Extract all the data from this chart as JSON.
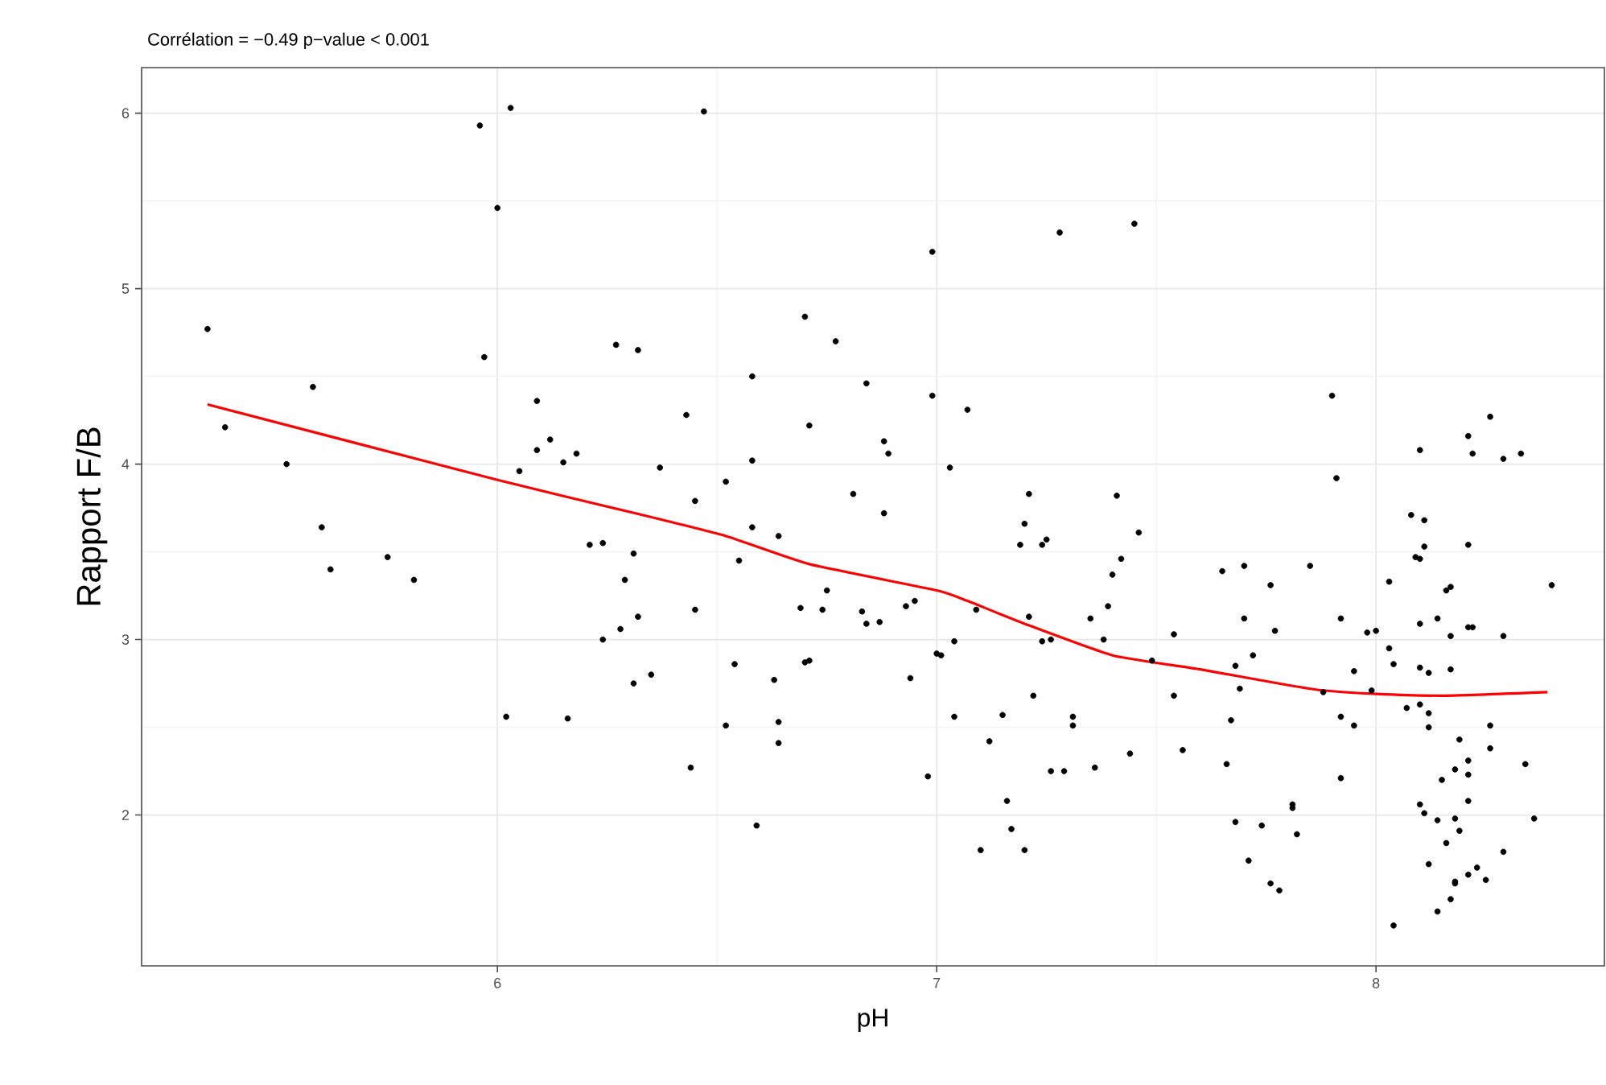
{
  "chart_data": {
    "type": "scatter",
    "title": "Corrélation = −0.49 p−value < 0.001",
    "xlabel": "pH",
    "ylabel": "Rapport F/B",
    "xlim": [
      5.19,
      8.52
    ],
    "ylim": [
      1.14,
      6.26
    ],
    "xticks": [
      6,
      7,
      8
    ],
    "yticks": [
      2,
      3,
      4,
      5,
      6
    ],
    "grid": true,
    "series": [
      {
        "color": "#000000",
        "marker": "circle",
        "x": [
          5.34,
          5.38,
          5.52,
          5.58,
          5.6,
          5.62,
          5.75,
          5.81,
          5.96,
          5.97,
          6.0,
          6.03,
          6.02,
          6.05,
          6.09,
          6.09,
          6.12,
          6.15,
          6.18,
          6.16,
          6.21,
          6.24,
          6.24,
          6.27,
          6.28,
          6.29,
          6.31,
          6.32,
          6.31,
          6.32,
          6.35,
          6.37,
          6.43,
          6.44,
          6.45,
          6.45,
          6.47,
          6.52,
          6.52,
          6.54,
          6.55,
          6.58,
          6.58,
          6.59,
          6.58,
          6.63,
          6.64,
          6.64,
          6.64,
          6.69,
          6.7,
          6.7,
          6.71,
          6.71,
          6.74,
          6.75,
          6.77,
          6.81,
          6.83,
          6.84,
          6.84,
          6.87,
          6.88,
          6.89,
          6.88,
          6.93,
          6.94,
          6.95,
          6.98,
          6.99,
          6.99,
          7.0,
          7.01,
          7.03,
          7.04,
          7.04,
          7.07,
          7.09,
          7.1,
          7.12,
          7.15,
          7.16,
          7.17,
          7.19,
          7.2,
          7.2,
          7.21,
          7.21,
          7.22,
          7.24,
          7.25,
          7.24,
          7.26,
          7.26,
          7.29,
          7.28,
          7.31,
          7.31,
          7.35,
          7.36,
          7.38,
          7.39,
          7.4,
          7.41,
          7.42,
          7.44,
          7.46,
          7.45,
          7.65,
          7.7,
          7.76,
          7.85,
          8.03,
          8.08,
          8.11,
          8.11,
          8.09,
          8.1,
          8.21,
          8.16,
          8.17,
          8.4,
          7.54,
          7.7,
          7.77,
          7.92,
          7.98,
          8.0,
          8.1,
          8.14,
          8.17,
          8.21,
          8.22,
          8.29,
          7.49,
          7.68,
          7.72,
          7.95,
          8.03,
          8.04,
          8.1,
          8.12,
          8.17,
          7.99,
          7.54,
          7.69,
          7.88,
          7.67,
          7.92,
          7.95,
          8.07,
          8.1,
          8.12,
          8.12,
          8.26,
          7.56,
          7.66,
          8.19,
          8.26,
          8.21,
          8.18,
          8.21,
          8.34,
          7.92,
          8.15,
          8.21,
          7.81,
          7.81,
          8.1,
          8.11,
          8.14,
          8.18,
          8.36,
          7.68,
          7.74,
          7.82,
          8.19,
          8.16,
          7.71,
          8.12,
          8.29,
          7.76,
          7.78,
          8.18,
          8.18,
          8.21,
          8.23,
          8.25,
          8.17,
          8.14,
          8.04,
          7.9,
          7.91,
          8.1,
          8.21,
          8.26,
          8.22,
          8.29,
          8.33
        ],
        "values": [
          4.77,
          4.21,
          4.0,
          4.44,
          3.64,
          3.4,
          3.47,
          3.34,
          5.93,
          4.61,
          5.46,
          6.03,
          2.56,
          3.96,
          4.36,
          4.08,
          4.14,
          4.01,
          4.06,
          2.55,
          3.54,
          3.55,
          3.0,
          4.68,
          3.06,
          3.34,
          3.49,
          4.65,
          2.75,
          3.13,
          2.8,
          3.98,
          4.28,
          2.27,
          3.17,
          3.79,
          6.01,
          3.9,
          2.51,
          2.86,
          3.45,
          4.5,
          3.64,
          1.94,
          4.02,
          2.77,
          3.59,
          2.53,
          2.41,
          3.18,
          4.84,
          2.87,
          2.88,
          4.22,
          3.17,
          3.28,
          4.7,
          3.83,
          3.16,
          3.09,
          4.46,
          3.1,
          4.13,
          4.06,
          3.72,
          3.19,
          2.78,
          3.22,
          2.22,
          5.21,
          4.39,
          2.92,
          2.91,
          3.98,
          2.99,
          2.56,
          4.31,
          3.17,
          1.8,
          2.42,
          2.57,
          2.08,
          1.92,
          3.54,
          3.66,
          1.8,
          3.83,
          3.13,
          2.68,
          3.54,
          3.57,
          2.99,
          3.0,
          2.25,
          2.25,
          5.32,
          2.51,
          2.56,
          3.12,
          2.27,
          3.0,
          3.19,
          3.37,
          3.82,
          3.46,
          2.35,
          3.61,
          5.37,
          3.39,
          3.42,
          3.31,
          3.42,
          3.33,
          3.71,
          3.68,
          3.53,
          3.47,
          3.46,
          3.54,
          3.28,
          3.3,
          3.31,
          3.03,
          3.12,
          3.05,
          3.12,
          3.04,
          3.05,
          3.09,
          3.12,
          3.02,
          3.07,
          3.07,
          3.02,
          2.88,
          2.85,
          2.91,
          2.82,
          2.95,
          2.86,
          2.84,
          2.81,
          2.83,
          2.71,
          2.68,
          2.72,
          2.7,
          2.54,
          2.56,
          2.51,
          2.61,
          2.63,
          2.58,
          2.5,
          2.51,
          2.37,
          2.29,
          2.43,
          2.38,
          2.31,
          2.26,
          2.23,
          2.29,
          2.21,
          2.2,
          2.08,
          2.06,
          2.04,
          2.06,
          2.01,
          1.97,
          1.98,
          1.98,
          1.96,
          1.94,
          1.89,
          1.91,
          1.84,
          1.74,
          1.72,
          1.79,
          1.61,
          1.57,
          1.62,
          1.61,
          1.66,
          1.7,
          1.63,
          1.52,
          1.45,
          1.37,
          4.39,
          3.92,
          4.08,
          4.16,
          4.27,
          4.06,
          4.03,
          4.06
        ]
      },
      {
        "type": "line",
        "color": "#ff0000",
        "marker": "none",
        "x": [
          5.34,
          6.0,
          6.33,
          6.52,
          6.71,
          7.0,
          7.07,
          7.2,
          7.4,
          7.6,
          7.8,
          7.88,
          8.0,
          8.16,
          8.39
        ],
        "values": [
          4.34,
          3.91,
          3.71,
          3.59,
          3.43,
          3.28,
          3.22,
          3.09,
          2.91,
          2.83,
          2.74,
          2.71,
          2.69,
          2.68,
          2.7
        ]
      }
    ]
  }
}
